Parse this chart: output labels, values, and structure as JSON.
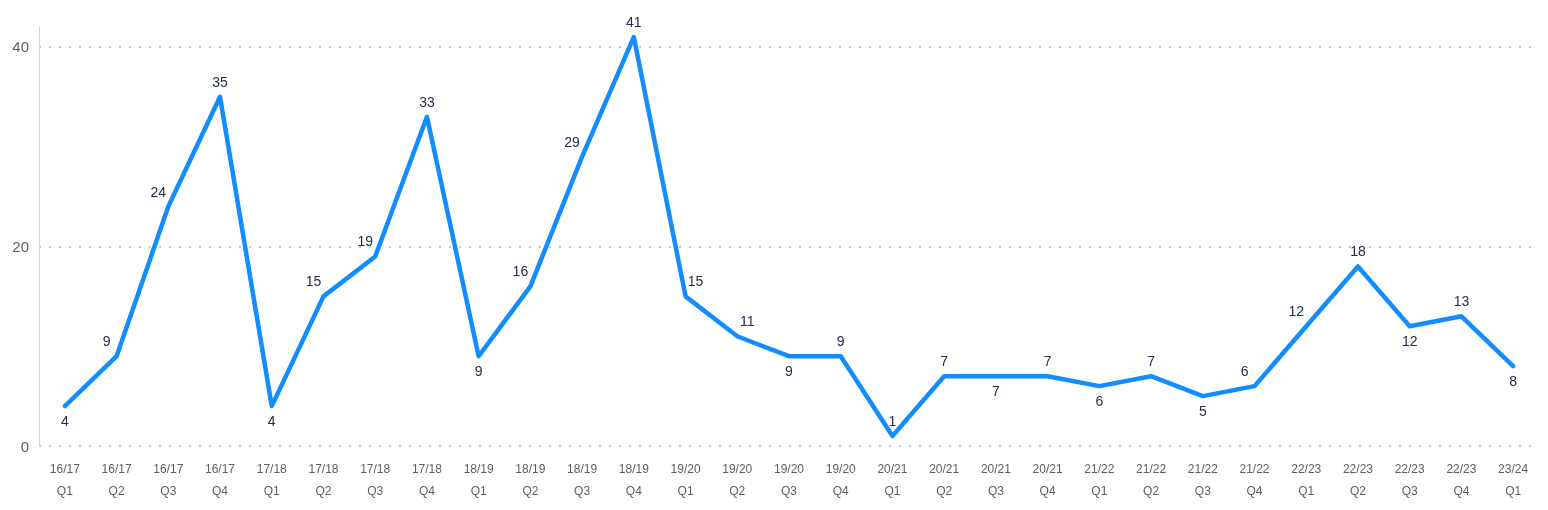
{
  "chart_data": {
    "type": "line",
    "categories": [
      "16/17 Q1",
      "16/17 Q2",
      "16/17 Q3",
      "16/17 Q4",
      "17/18 Q1",
      "17/18 Q2",
      "17/18 Q3",
      "17/18 Q4",
      "18/19 Q1",
      "18/19 Q2",
      "18/19 Q3",
      "18/19 Q4",
      "19/20 Q1",
      "19/20 Q2",
      "19/20 Q3",
      "19/20 Q4",
      "20/21 Q1",
      "20/21 Q2",
      "20/21 Q3",
      "20/21 Q4",
      "21/22 Q1",
      "21/22 Q2",
      "21/22 Q3",
      "21/22 Q4",
      "22/23 Q1",
      "22/23 Q2",
      "22/23 Q3",
      "22/23 Q4",
      "23/24 Q1"
    ],
    "values": [
      4,
      9,
      24,
      35,
      4,
      15,
      19,
      33,
      9,
      16,
      29,
      41,
      15,
      11,
      9,
      9,
      1,
      7,
      7,
      7,
      6,
      7,
      5,
      6,
      12,
      18,
      12,
      13,
      8
    ],
    "color": "#118dff",
    "ylim": [
      0,
      42
    ],
    "yticks": [
      0,
      20,
      40
    ],
    "grid": "y",
    "data_labels": true,
    "marker": "none",
    "line_style": "solid"
  }
}
